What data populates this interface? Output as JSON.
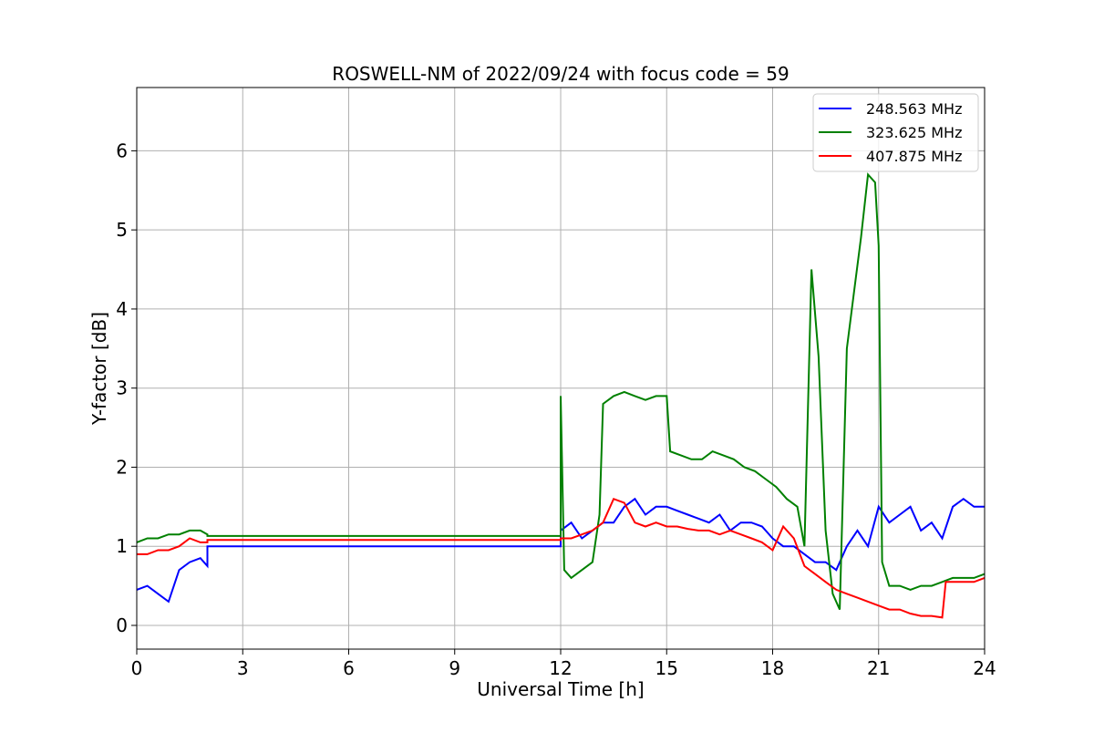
{
  "chart_data": {
    "type": "line",
    "title": "ROSWELL-NM of 2022/09/24 with focus code = 59",
    "xlabel": "Universal Time [h]",
    "ylabel": "Y-factor [dB]",
    "xlim": [
      0,
      24
    ],
    "ylim": [
      -0.3,
      6.8
    ],
    "xticks": [
      0,
      3,
      6,
      9,
      12,
      15,
      18,
      21,
      24
    ],
    "yticks": [
      0,
      1,
      2,
      3,
      4,
      5,
      6
    ],
    "grid": true,
    "legend_position": "top-right",
    "series": [
      {
        "name": "248.563 MHz",
        "color": "#0000ff",
        "x": [
          0,
          0.3,
          0.6,
          0.9,
          1.2,
          1.5,
          1.8,
          2.0,
          2.0,
          12.0,
          12.0,
          12.3,
          12.6,
          12.9,
          13.2,
          13.5,
          13.8,
          14.1,
          14.4,
          14.7,
          15.0,
          15.3,
          15.6,
          15.9,
          16.2,
          16.5,
          16.8,
          17.1,
          17.4,
          17.7,
          18.0,
          18.3,
          18.6,
          18.9,
          19.2,
          19.5,
          19.8,
          20.1,
          20.4,
          20.7,
          21.0,
          21.3,
          21.6,
          21.9,
          22.2,
          22.5,
          22.8,
          23.1,
          23.4,
          23.7,
          24.0
        ],
        "y": [
          0.45,
          0.5,
          0.4,
          0.3,
          0.7,
          0.8,
          0.85,
          0.75,
          1.0,
          1.0,
          1.2,
          1.3,
          1.1,
          1.2,
          1.3,
          1.3,
          1.5,
          1.6,
          1.4,
          1.5,
          1.5,
          1.45,
          1.4,
          1.35,
          1.3,
          1.4,
          1.2,
          1.3,
          1.3,
          1.25,
          1.1,
          1.0,
          1.0,
          0.9,
          0.8,
          0.8,
          0.7,
          1.0,
          1.2,
          1.0,
          1.5,
          1.3,
          1.4,
          1.5,
          1.2,
          1.3,
          1.1,
          1.5,
          1.6,
          1.5,
          1.5
        ]
      },
      {
        "name": "323.625 MHz",
        "color": "#008000",
        "x": [
          0,
          0.3,
          0.6,
          0.9,
          1.2,
          1.5,
          1.8,
          2.0,
          2.0,
          12.0,
          12.0,
          12.1,
          12.3,
          12.6,
          12.9,
          13.1,
          13.2,
          13.5,
          13.8,
          14.1,
          14.4,
          14.7,
          15.0,
          15.1,
          15.4,
          15.7,
          16.0,
          16.3,
          16.6,
          16.9,
          17.2,
          17.5,
          17.8,
          18.1,
          18.4,
          18.7,
          18.9,
          19.1,
          19.3,
          19.5,
          19.7,
          19.9,
          20.1,
          20.3,
          20.5,
          20.7,
          20.9,
          21.0,
          21.1,
          21.3,
          21.6,
          21.9,
          22.2,
          22.5,
          22.8,
          23.1,
          23.4,
          23.7,
          24.0
        ],
        "y": [
          1.05,
          1.1,
          1.1,
          1.15,
          1.15,
          1.2,
          1.2,
          1.15,
          1.13,
          1.13,
          2.9,
          0.7,
          0.6,
          0.7,
          0.8,
          1.4,
          2.8,
          2.9,
          2.95,
          2.9,
          2.85,
          2.9,
          2.9,
          2.2,
          2.15,
          2.1,
          2.1,
          2.2,
          2.15,
          2.1,
          2.0,
          1.95,
          1.85,
          1.75,
          1.6,
          1.5,
          1.0,
          4.5,
          3.4,
          1.2,
          0.4,
          0.2,
          3.5,
          4.2,
          4.9,
          5.7,
          5.6,
          4.8,
          0.8,
          0.5,
          0.5,
          0.45,
          0.5,
          0.5,
          0.55,
          0.6,
          0.6,
          0.6,
          0.65
        ]
      },
      {
        "name": "407.875 MHz",
        "color": "#ff0000",
        "x": [
          0,
          0.3,
          0.6,
          0.9,
          1.2,
          1.5,
          1.8,
          2.0,
          2.0,
          12.0,
          12.0,
          12.3,
          12.6,
          12.9,
          13.2,
          13.5,
          13.8,
          14.1,
          14.4,
          14.7,
          15.0,
          15.3,
          15.6,
          15.9,
          16.2,
          16.5,
          16.8,
          17.1,
          17.4,
          17.7,
          18.0,
          18.3,
          18.6,
          18.9,
          19.2,
          19.5,
          19.8,
          20.1,
          20.4,
          20.7,
          21.0,
          21.3,
          21.6,
          21.9,
          22.2,
          22.5,
          22.8,
          22.9,
          23.1,
          23.4,
          23.7,
          24.0
        ],
        "y": [
          0.9,
          0.9,
          0.95,
          0.95,
          1.0,
          1.1,
          1.05,
          1.05,
          1.08,
          1.08,
          1.1,
          1.1,
          1.15,
          1.2,
          1.3,
          1.6,
          1.55,
          1.3,
          1.25,
          1.3,
          1.25,
          1.25,
          1.22,
          1.2,
          1.2,
          1.15,
          1.2,
          1.15,
          1.1,
          1.05,
          0.95,
          1.25,
          1.1,
          0.75,
          0.65,
          0.55,
          0.45,
          0.4,
          0.35,
          0.3,
          0.25,
          0.2,
          0.2,
          0.15,
          0.12,
          0.12,
          0.1,
          0.55,
          0.55,
          0.55,
          0.55,
          0.6
        ]
      }
    ]
  }
}
